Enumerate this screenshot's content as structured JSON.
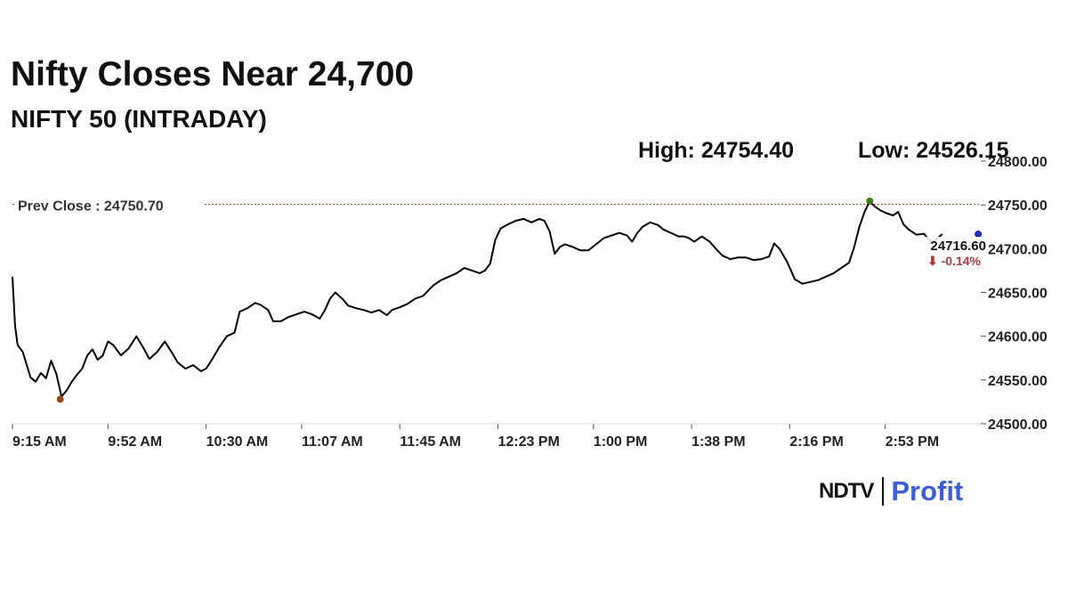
{
  "headline": "Nifty Closes Near 24,700",
  "subheadline": "NIFTY 50 (INTRADAY)",
  "stats": {
    "high": "High: 24754.40",
    "low": "Low: 24526.15"
  },
  "brand": {
    "name": "NDTV",
    "product": "Profit",
    "product_color": "#3d5ed6"
  },
  "chart_data": {
    "type": "line",
    "ylim": [
      24500,
      24800
    ],
    "y_ticks": [
      "24500.00",
      "24550.00",
      "24600.00",
      "24650.00",
      "24700.00",
      "24750.00",
      "24800.00"
    ],
    "y_tick_values": [
      24500,
      24550,
      24600,
      24650,
      24700,
      24750,
      24800
    ],
    "x_ticks": [
      "9:15 AM",
      "9:52 AM",
      "10:30 AM",
      "11:07 AM",
      "11:45 AM",
      "12:23 PM",
      "1:00 PM",
      "1:38 PM",
      "2:16 PM",
      "2:53 PM"
    ],
    "x_tick_minutes": [
      555,
      592,
      630,
      667,
      705,
      743,
      780,
      818,
      856,
      893
    ],
    "xlim_minutes": [
      555,
      930
    ],
    "series": [
      {
        "color": "#000000",
        "points": [
          [
            555,
            24668
          ],
          [
            556,
            24612
          ],
          [
            557,
            24590
          ],
          [
            559,
            24582
          ],
          [
            562,
            24553
          ],
          [
            564,
            24548
          ],
          [
            566,
            24558
          ],
          [
            568,
            24552
          ],
          [
            570,
            24572
          ],
          [
            572,
            24557
          ],
          [
            574,
            24531
          ],
          [
            576,
            24538
          ],
          [
            578,
            24548
          ],
          [
            580,
            24556
          ],
          [
            582,
            24563
          ],
          [
            584,
            24578
          ],
          [
            586,
            24585
          ],
          [
            588,
            24573
          ],
          [
            590,
            24578
          ],
          [
            592,
            24594
          ],
          [
            594,
            24590
          ],
          [
            597,
            24578
          ],
          [
            600,
            24586
          ],
          [
            603,
            24600
          ],
          [
            606,
            24585
          ],
          [
            608,
            24574
          ],
          [
            611,
            24582
          ],
          [
            614,
            24594
          ],
          [
            617,
            24580
          ],
          [
            619,
            24570
          ],
          [
            622,
            24563
          ],
          [
            625,
            24567
          ],
          [
            628,
            24560
          ],
          [
            630,
            24563
          ],
          [
            632,
            24572
          ],
          [
            635,
            24587
          ],
          [
            638,
            24600
          ],
          [
            641,
            24604
          ],
          [
            643,
            24628
          ],
          [
            646,
            24632
          ],
          [
            649,
            24638
          ],
          [
            651,
            24636
          ],
          [
            654,
            24630
          ],
          [
            656,
            24617
          ],
          [
            659,
            24617
          ],
          [
            662,
            24622
          ],
          [
            665,
            24625
          ],
          [
            668,
            24628
          ],
          [
            671,
            24625
          ],
          [
            674,
            24620
          ],
          [
            676,
            24630
          ],
          [
            678,
            24643
          ],
          [
            680,
            24650
          ],
          [
            683,
            24642
          ],
          [
            685,
            24635
          ],
          [
            688,
            24632
          ],
          [
            691,
            24630
          ],
          [
            694,
            24627
          ],
          [
            697,
            24630
          ],
          [
            700,
            24624
          ],
          [
            702,
            24630
          ],
          [
            705,
            24633
          ],
          [
            708,
            24637
          ],
          [
            711,
            24643
          ],
          [
            714,
            24646
          ],
          [
            716,
            24652
          ],
          [
            718,
            24658
          ],
          [
            721,
            24664
          ],
          [
            724,
            24668
          ],
          [
            727,
            24672
          ],
          [
            730,
            24678
          ],
          [
            733,
            24675
          ],
          [
            736,
            24672
          ],
          [
            738,
            24675
          ],
          [
            740,
            24683
          ],
          [
            742,
            24710
          ],
          [
            744,
            24723
          ],
          [
            747,
            24728
          ],
          [
            750,
            24732
          ],
          [
            753,
            24734
          ],
          [
            756,
            24730
          ],
          [
            759,
            24734
          ],
          [
            761,
            24732
          ],
          [
            763,
            24720
          ],
          [
            765,
            24694
          ],
          [
            767,
            24702
          ],
          [
            769,
            24705
          ],
          [
            772,
            24702
          ],
          [
            775,
            24698
          ],
          [
            778,
            24698
          ],
          [
            781,
            24705
          ],
          [
            784,
            24712
          ],
          [
            787,
            24715
          ],
          [
            790,
            24718
          ],
          [
            793,
            24715
          ],
          [
            795,
            24708
          ],
          [
            797,
            24718
          ],
          [
            799,
            24725
          ],
          [
            802,
            24730
          ],
          [
            805,
            24727
          ],
          [
            807,
            24722
          ],
          [
            810,
            24718
          ],
          [
            813,
            24714
          ],
          [
            815,
            24714
          ],
          [
            817,
            24712
          ],
          [
            819,
            24708
          ],
          [
            822,
            24714
          ],
          [
            825,
            24708
          ],
          [
            828,
            24698
          ],
          [
            830,
            24692
          ],
          [
            833,
            24688
          ],
          [
            836,
            24690
          ],
          [
            839,
            24690
          ],
          [
            842,
            24687
          ],
          [
            845,
            24688
          ],
          [
            848,
            24691
          ],
          [
            850,
            24706
          ],
          [
            852,
            24700
          ],
          [
            855,
            24685
          ],
          [
            858,
            24665
          ],
          [
            861,
            24660
          ],
          [
            864,
            24662
          ],
          [
            867,
            24664
          ],
          [
            870,
            24668
          ],
          [
            873,
            24672
          ],
          [
            876,
            24678
          ],
          [
            879,
            24684
          ],
          [
            881,
            24702
          ],
          [
            883,
            24725
          ],
          [
            885,
            24742
          ],
          [
            887,
            24754
          ],
          [
            889,
            24748
          ],
          [
            891,
            24744
          ],
          [
            893,
            24741
          ],
          [
            896,
            24738
          ],
          [
            898,
            24742
          ],
          [
            900,
            24728
          ],
          [
            902,
            24722
          ],
          [
            905,
            24716
          ],
          [
            908,
            24717
          ],
          [
            910,
            24710
          ],
          [
            912,
            24708
          ],
          [
            915,
            24716.6
          ]
        ]
      }
    ],
    "prev_close": {
      "label": "Prev Close : 24750.70",
      "value": 24750.7,
      "color": "#a05a20"
    },
    "markers": [
      {
        "name": "low-marker",
        "x": 573.5,
        "y": 24528,
        "color": "#9a4a18"
      },
      {
        "name": "high-marker",
        "x": 887,
        "y": 24754.4,
        "color": "#3e7d1a"
      },
      {
        "name": "last-price-marker",
        "x": 929,
        "y": 24716.6,
        "color": "#1c2fb5"
      }
    ],
    "last_price": {
      "value": "24716.60",
      "change": "⬇ -0.14%",
      "change_color": "#b23a3a"
    }
  }
}
